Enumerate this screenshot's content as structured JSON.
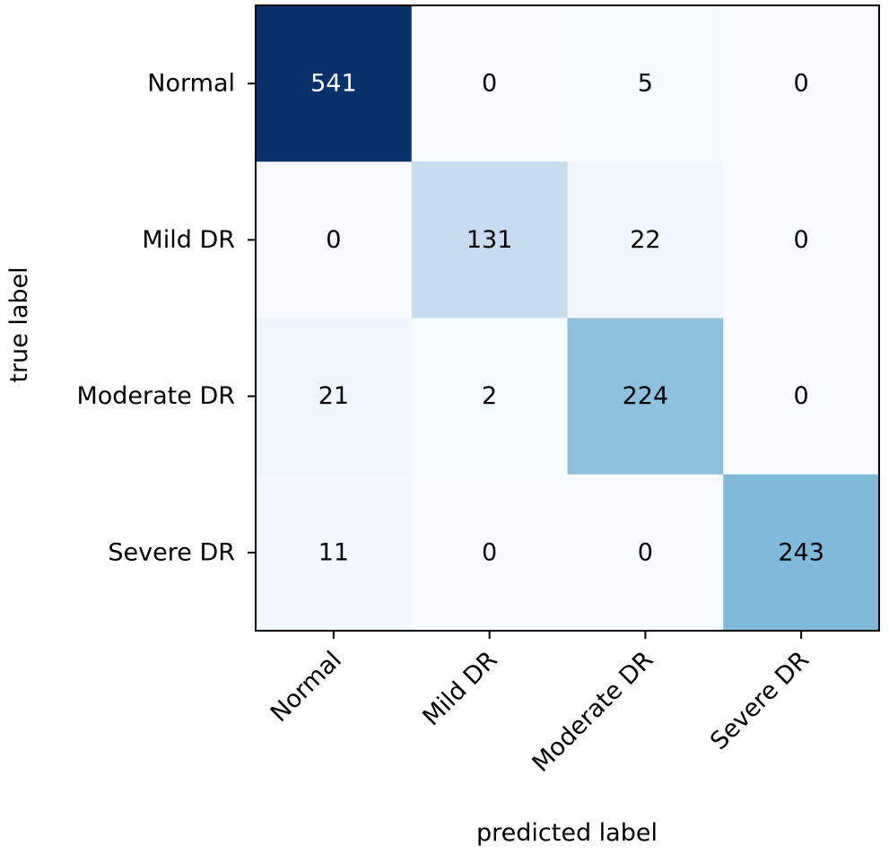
{
  "chart_data": {
    "type": "heatmap",
    "title": "",
    "xlabel": "predicted label",
    "ylabel": "true label",
    "x_categories": [
      "Normal",
      "Mild DR",
      "Moderate DR",
      "Severe DR"
    ],
    "y_categories": [
      "Normal",
      "Mild DR",
      "Moderate DR",
      "Severe DR"
    ],
    "values": [
      [
        541,
        0,
        5,
        0
      ],
      [
        0,
        131,
        22,
        0
      ],
      [
        21,
        2,
        224,
        0
      ],
      [
        11,
        0,
        0,
        243
      ]
    ],
    "colormap": "Blues",
    "value_range": [
      0,
      541
    ],
    "colors": {
      "low": "#f7fbff",
      "high": "#08306b",
      "text_dark": "#000000",
      "text_light": "#ffffff",
      "frame": "#000000"
    }
  }
}
